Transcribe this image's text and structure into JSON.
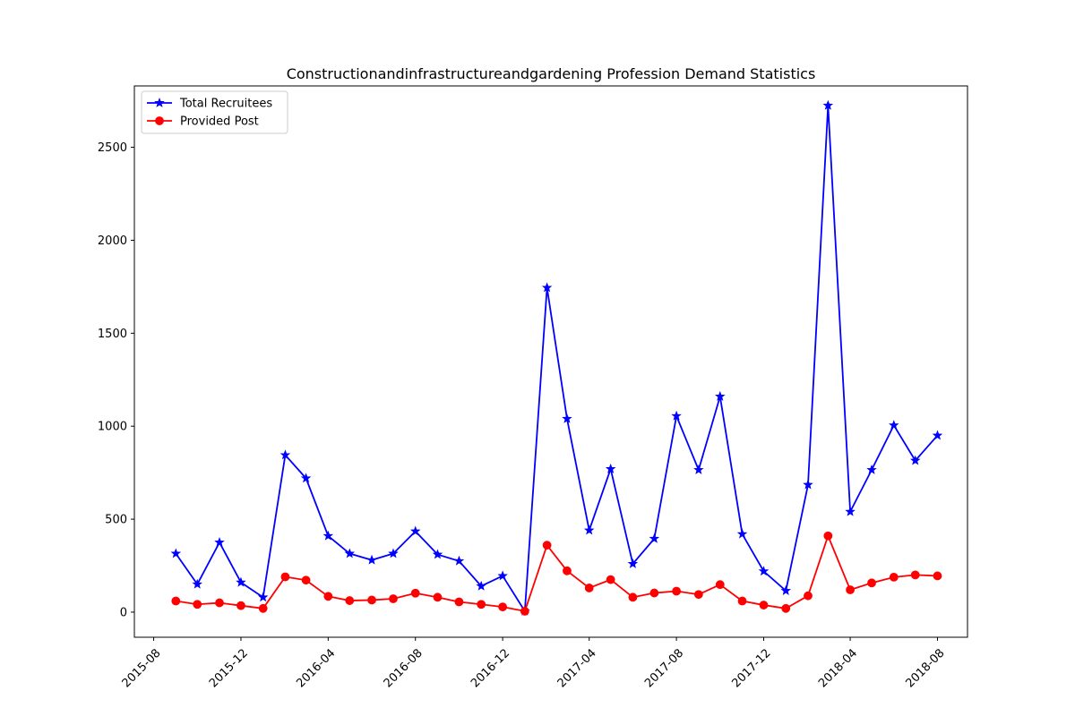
{
  "chart_data": {
    "type": "line",
    "title": "Constructionandinfrastructureandgardening Profession Demand Statistics",
    "xlabel": "",
    "ylabel": "",
    "x_tick_labels": [
      "2015-08",
      "2015-12",
      "2016-04",
      "2016-08",
      "2016-12",
      "2017-04",
      "2017-08",
      "2017-12",
      "2018-04",
      "2018-08"
    ],
    "y_tick_labels": [
      "0",
      "500",
      "1000",
      "1500",
      "2000",
      "2500"
    ],
    "y_ticks": [
      0,
      500,
      1000,
      1500,
      2000,
      2500
    ],
    "ylim": [
      -135,
      2830
    ],
    "xlim": [
      "2015-07-05",
      "2018-09-12"
    ],
    "grid": false,
    "legend_position": "upper-left",
    "x": [
      "2015-09-01",
      "2015-10-01",
      "2015-11-01",
      "2015-12-01",
      "2016-01-01",
      "2016-02-01",
      "2016-03-01",
      "2016-04-01",
      "2016-05-01",
      "2016-06-01",
      "2016-07-01",
      "2016-08-01",
      "2016-09-01",
      "2016-10-01",
      "2016-11-01",
      "2016-12-01",
      "2017-01-01",
      "2017-02-01",
      "2017-03-01",
      "2017-04-01",
      "2017-05-01",
      "2017-06-01",
      "2017-07-01",
      "2017-08-01",
      "2017-09-01",
      "2017-10-01",
      "2017-11-01",
      "2017-12-01",
      "2018-01-01",
      "2018-02-01",
      "2018-03-01",
      "2018-04-01",
      "2018-05-01",
      "2018-06-01",
      "2018-07-01",
      "2018-08-01"
    ],
    "series": [
      {
        "name": "Total Recruitees",
        "color": "#0000ff",
        "marker": "star",
        "values": [
          315,
          150,
          375,
          160,
          80,
          845,
          720,
          410,
          315,
          280,
          315,
          435,
          310,
          275,
          140,
          195,
          5,
          1745,
          1040,
          440,
          770,
          260,
          395,
          1055,
          765,
          1160,
          420,
          220,
          115,
          685,
          2725,
          540,
          765,
          1005,
          815,
          950
        ]
      },
      {
        "name": "Provided Post",
        "color": "#ff0000",
        "marker": "circle",
        "values": [
          60,
          42,
          50,
          35,
          20,
          190,
          172,
          85,
          62,
          65,
          72,
          102,
          80,
          55,
          42,
          28,
          5,
          360,
          222,
          130,
          175,
          80,
          103,
          113,
          95,
          148,
          60,
          38,
          20,
          88,
          410,
          120,
          157,
          188,
          200,
          195
        ]
      }
    ]
  }
}
